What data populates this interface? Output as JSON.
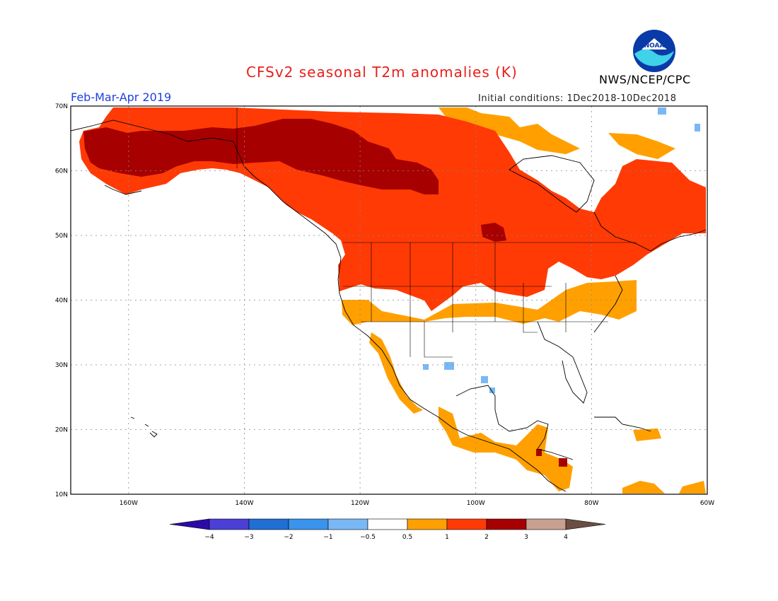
{
  "header": {
    "title": "CFSv2 seasonal T2m anomalies (K)",
    "period": "Feb-Mar-Apr 2019",
    "initial_conditions": "Initial conditions: 1Dec2018-10Dec2018",
    "agency": "NWS/NCEP/CPC",
    "logo_text": "NOAA"
  },
  "map": {
    "lat_labels": [
      "70N",
      "60N",
      "50N",
      "40N",
      "30N",
      "20N",
      "10N"
    ],
    "lon_labels": [
      "160W",
      "140W",
      "120W",
      "100W",
      "80W",
      "60W"
    ],
    "lon_range": [
      -170,
      -60
    ],
    "lat_range": [
      10,
      70
    ],
    "grid": "dotted"
  },
  "colorbar": {
    "labels": [
      "-4",
      "-3",
      "-2",
      "-1",
      "-0.5",
      "0.5",
      "1",
      "2",
      "3",
      "4"
    ],
    "colors": [
      "#2c0aa6",
      "#4b3fd6",
      "#1f6fd4",
      "#3a93ec",
      "#7ab8f5",
      "#ffffff",
      "#ffa000",
      "#ff3a05",
      "#a60000",
      "#c8a090",
      "#6b4e41"
    ]
  },
  "legend_colors": {
    "weak_warm": "#ffa000",
    "warm": "#ff3a05",
    "strong_warm": "#a60000",
    "weak_cold": "#7ab8f5"
  }
}
